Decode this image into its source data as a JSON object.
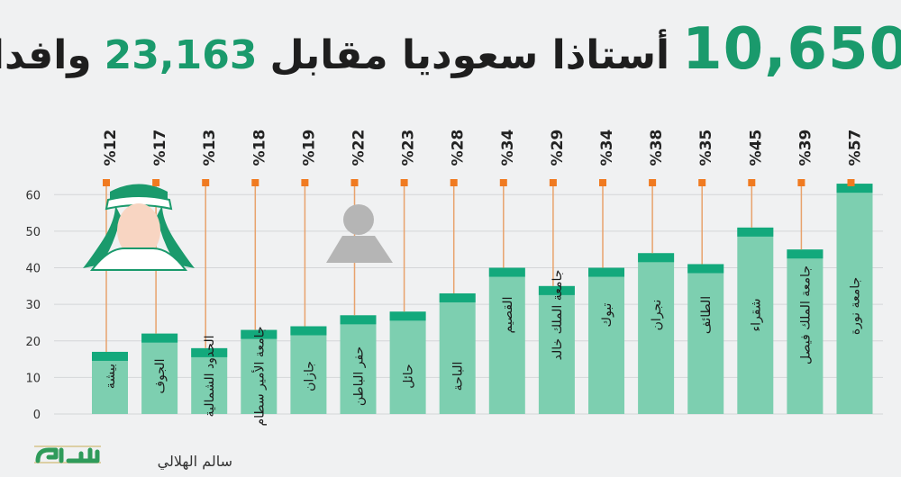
{
  "headline": {
    "number_big": "10,650",
    "text_1": "أستاذا سعوديا مقابل",
    "number_mid": "23,163",
    "text_2": "وافدا"
  },
  "credit": "سالم الهلالي",
  "logo_text": "عكاظ",
  "colors": {
    "bar_body": "#7dcfb0",
    "bar_cap": "#13a97c",
    "marker": "#f07a20",
    "line": "#e8a26c",
    "number_green": "#1a9a6c"
  },
  "chart_data": {
    "type": "bar",
    "title": "",
    "xlabel": "",
    "ylabel": "",
    "ylim": [
      0,
      65
    ],
    "yticks": [
      0,
      10,
      20,
      30,
      40,
      50,
      60
    ],
    "categories": [
      "بيشة",
      "الجوف",
      "الحدود الشمالية",
      "جامعة الأمير سطام",
      "جازان",
      "حفر الباطن",
      "حائل",
      "الباحة",
      "القصيم",
      "جامعة الملك خالد",
      "تبوك",
      "نجران",
      "الطائف",
      "شقراء",
      "جامعة الملك فيصل",
      "جامعة نورة"
    ],
    "values": [
      17,
      22,
      18,
      23,
      24,
      27,
      28,
      33,
      40,
      35,
      40,
      44,
      41,
      51,
      45,
      63
    ],
    "percent_labels": [
      "%12",
      "%17",
      "%13",
      "%18",
      "%19",
      "%22",
      "%23",
      "%28",
      "%34",
      "%29",
      "%34",
      "%38",
      "%35",
      "%45",
      "%39",
      "%57"
    ]
  }
}
